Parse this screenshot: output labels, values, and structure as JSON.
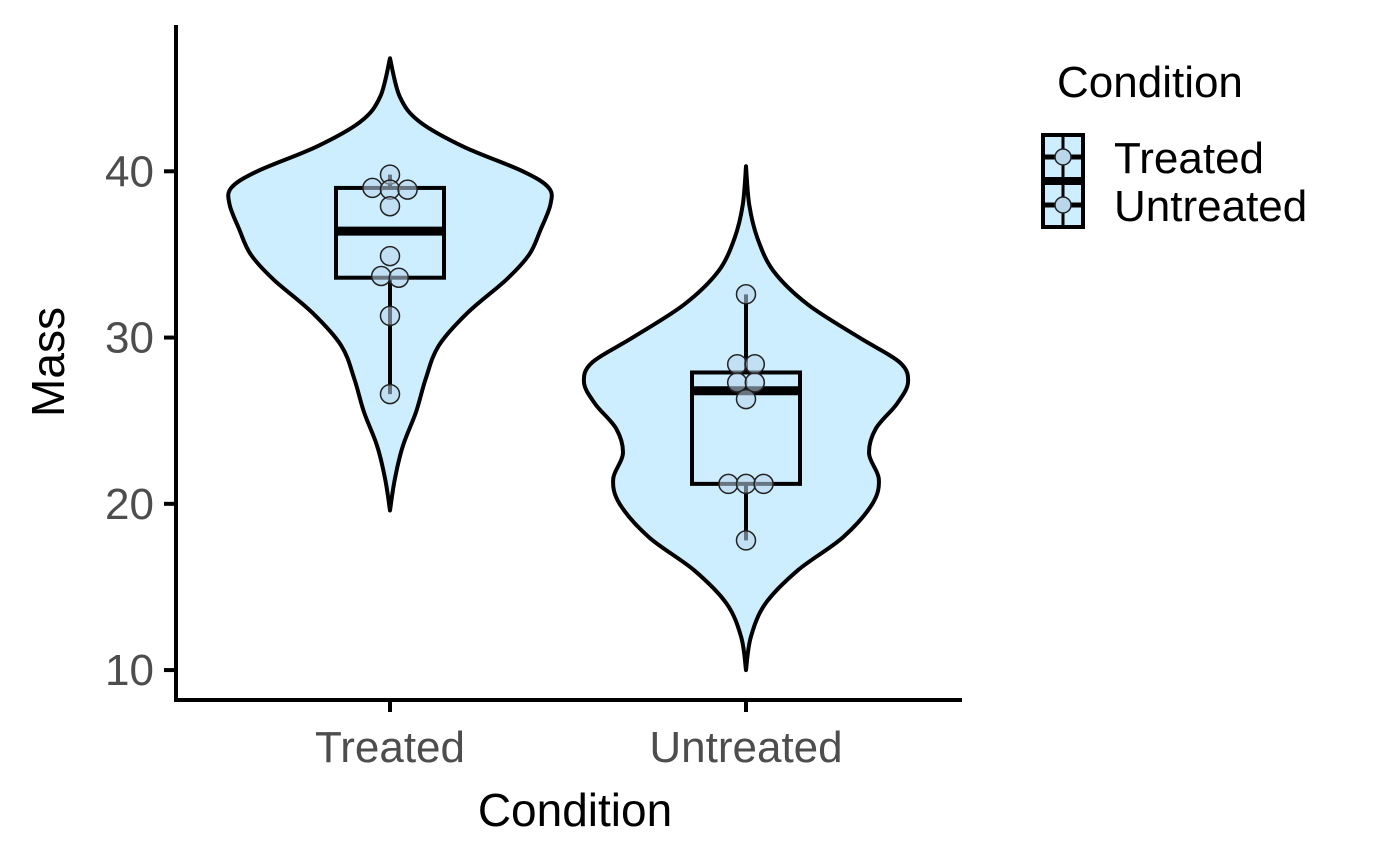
{
  "chart_data": {
    "type": "violin",
    "xlabel": "Condition",
    "ylabel": "Mass",
    "ylim": [
      8.2,
      48.8
    ],
    "yticks": [
      10,
      20,
      30,
      40
    ],
    "categories": [
      "Treated",
      "Untreated"
    ],
    "legend": {
      "title": "Condition",
      "position": "right",
      "entries": [
        "Treated",
        "Untreated"
      ]
    },
    "fill_color": "#cdeefe",
    "point_color": "#b9d6ea",
    "line_color": "#000000",
    "groups": [
      {
        "name": "Treated",
        "points": [
          39.8,
          39.0,
          38.9,
          38.9,
          37.9,
          34.9,
          33.7,
          33.6,
          31.3,
          26.6
        ],
        "box": {
          "min": 26.6,
          "q1": 33.6,
          "median": 36.4,
          "q3": 39.0,
          "max": 39.8
        },
        "violin_range": [
          19.6,
          46.8
        ],
        "violin_profile": [
          [
            19.6,
            0.0
          ],
          [
            21.5,
            0.03
          ],
          [
            23.5,
            0.08
          ],
          [
            25.5,
            0.16
          ],
          [
            27.5,
            0.22
          ],
          [
            29.5,
            0.3
          ],
          [
            31.5,
            0.48
          ],
          [
            33.5,
            0.72
          ],
          [
            35.0,
            0.86
          ],
          [
            36.5,
            0.93
          ],
          [
            38.0,
            0.99
          ],
          [
            39.0,
            0.98
          ],
          [
            40.0,
            0.82
          ],
          [
            41.5,
            0.45
          ],
          [
            43.0,
            0.18
          ],
          [
            44.5,
            0.06
          ],
          [
            46.8,
            0.0
          ]
        ]
      },
      {
        "name": "Untreated",
        "points": [
          32.6,
          28.4,
          28.4,
          27.3,
          27.3,
          26.3,
          21.2,
          21.2,
          21.2,
          17.8
        ],
        "box": {
          "min": 17.8,
          "q1": 21.2,
          "median": 26.8,
          "q3": 27.9,
          "max": 32.6
        },
        "violin_range": [
          10.0,
          40.3
        ],
        "violin_profile": [
          [
            10.0,
            0.0
          ],
          [
            12.0,
            0.03
          ],
          [
            14.0,
            0.12
          ],
          [
            16.0,
            0.32
          ],
          [
            18.0,
            0.6
          ],
          [
            20.0,
            0.78
          ],
          [
            21.5,
            0.82
          ],
          [
            23.0,
            0.76
          ],
          [
            24.5,
            0.8
          ],
          [
            26.0,
            0.93
          ],
          [
            27.3,
            1.0
          ],
          [
            28.5,
            0.95
          ],
          [
            30.0,
            0.7
          ],
          [
            32.0,
            0.38
          ],
          [
            34.0,
            0.17
          ],
          [
            36.0,
            0.07
          ],
          [
            38.0,
            0.02
          ],
          [
            40.3,
            0.0
          ]
        ]
      }
    ]
  }
}
